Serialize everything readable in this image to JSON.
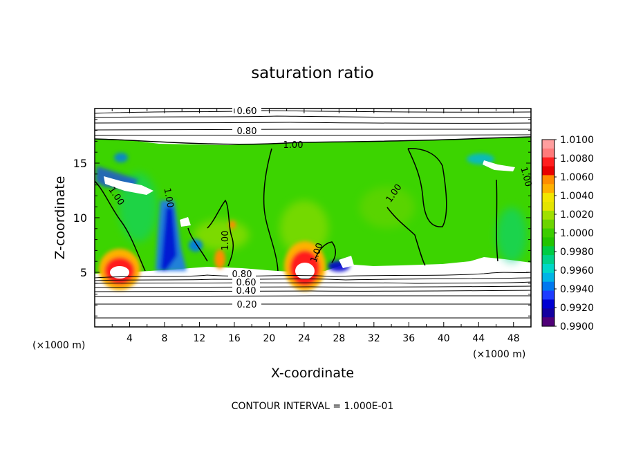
{
  "chart_data": {
    "type": "heatmap",
    "title": "saturation ratio",
    "xlabel": "X-coordinate",
    "ylabel": "Z-coordinate",
    "x_unit": "(×1000 m)",
    "z_unit": "(×1000 m)",
    "xlim": [
      0,
      50
    ],
    "ylim": [
      0,
      20
    ],
    "x_ticks": [
      "4",
      "8",
      "12",
      "16",
      "20",
      "24",
      "28",
      "32",
      "36",
      "40",
      "44",
      "48"
    ],
    "y_ticks": [
      "5",
      "10",
      "15"
    ],
    "contour_interval_label": "CONTOUR INTERVAL = 1.000E-01",
    "contour_labels": [
      "0.60",
      "0.80",
      "1.00",
      "1.00",
      "1.00",
      "1.00",
      "1.00",
      "1.00",
      "1.00",
      "0.80",
      "0.60",
      "0.40",
      "0.20"
    ],
    "colorbar": {
      "labels": [
        "1.0100",
        "1.0080",
        "1.0060",
        "1.0040",
        "1.0020",
        "1.0000",
        "0.9980",
        "0.9960",
        "0.9940",
        "0.9920",
        "0.9900"
      ],
      "colors": [
        "#ff9e9e",
        "#ff7a7a",
        "#ff1e1e",
        "#e80000",
        "#ff8c00",
        "#ffb000",
        "#f2e600",
        "#e4e400",
        "#a0e000",
        "#6cd400",
        "#3ccd00",
        "#22c400",
        "#00cc44",
        "#00d28a",
        "#00d8c8",
        "#00b4e6",
        "#0078f0",
        "#1e3cff",
        "#0000d2",
        "#1400a0",
        "#500078"
      ]
    }
  }
}
